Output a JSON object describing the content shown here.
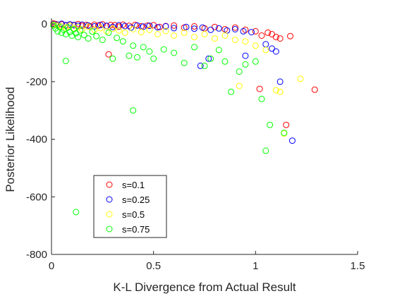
{
  "chart_data": {
    "type": "scatter",
    "xlabel": "K-L Divergence from Actual Result",
    "ylabel": "Posterior Likelihood",
    "xlim": [
      0,
      1.5
    ],
    "ylim": [
      -800,
      20
    ],
    "xticks": [
      0,
      0.5,
      1,
      1.5
    ],
    "xtick_labels": [
      "0",
      "0.5",
      "1",
      "1.5"
    ],
    "yticks": [
      0,
      -200,
      -400,
      -600,
      -800
    ],
    "ytick_labels": [
      "0",
      "-200",
      "-400",
      "-600",
      "-800"
    ],
    "grid": false,
    "legend_position": "lower-left",
    "marker": "open-circle",
    "series": [
      {
        "name": "s=0.1",
        "color": "#ff0000",
        "points": [
          [
            0.01,
            2
          ],
          [
            0.02,
            0
          ],
          [
            0.03,
            -3
          ],
          [
            0.05,
            -1
          ],
          [
            0.07,
            -5
          ],
          [
            0.09,
            -2
          ],
          [
            0.11,
            -4
          ],
          [
            0.13,
            0
          ],
          [
            0.15,
            -6
          ],
          [
            0.17,
            -3
          ],
          [
            0.19,
            -8
          ],
          [
            0.21,
            -2
          ],
          [
            0.23,
            -5
          ],
          [
            0.25,
            -1
          ],
          [
            0.27,
            -7
          ],
          [
            0.29,
            -3
          ],
          [
            0.31,
            -4
          ],
          [
            0.33,
            -9
          ],
          [
            0.35,
            -2
          ],
          [
            0.38,
            -6
          ],
          [
            0.41,
            -3
          ],
          [
            0.44,
            -8
          ],
          [
            0.47,
            -5
          ],
          [
            0.5,
            -4
          ],
          [
            0.53,
            -10
          ],
          [
            0.56,
            -7
          ],
          [
            0.6,
            -5
          ],
          [
            0.65,
            -12
          ],
          [
            0.7,
            -8
          ],
          [
            0.75,
            -15
          ],
          [
            0.8,
            -10
          ],
          [
            0.85,
            -18
          ],
          [
            0.9,
            -12
          ],
          [
            0.95,
            -20
          ],
          [
            1.0,
            -25
          ],
          [
            1.03,
            -40
          ],
          [
            1.06,
            -30
          ],
          [
            1.08,
            -35
          ],
          [
            1.1,
            -45
          ],
          [
            1.12,
            -50
          ],
          [
            1.17,
            -42
          ],
          [
            0.28,
            -105
          ],
          [
            1.02,
            -225
          ],
          [
            1.15,
            -350
          ],
          [
            1.29,
            -228
          ]
        ]
      },
      {
        "name": "s=0.25",
        "color": "#0000ff",
        "points": [
          [
            0.01,
            0
          ],
          [
            0.03,
            -2
          ],
          [
            0.05,
            1
          ],
          [
            0.07,
            -4
          ],
          [
            0.09,
            -1
          ],
          [
            0.11,
            -3
          ],
          [
            0.13,
            -6
          ],
          [
            0.15,
            -2
          ],
          [
            0.18,
            -5
          ],
          [
            0.21,
            -8
          ],
          [
            0.24,
            -3
          ],
          [
            0.27,
            -6
          ],
          [
            0.3,
            -10
          ],
          [
            0.33,
            -4
          ],
          [
            0.36,
            -7
          ],
          [
            0.39,
            -12
          ],
          [
            0.42,
            -5
          ],
          [
            0.45,
            -9
          ],
          [
            0.48,
            -6
          ],
          [
            0.52,
            -11
          ],
          [
            0.56,
            -8
          ],
          [
            0.6,
            -14
          ],
          [
            0.66,
            -10
          ],
          [
            0.7,
            -16
          ],
          [
            0.74,
            -12
          ],
          [
            0.78,
            -20
          ],
          [
            0.82,
            -15
          ],
          [
            0.86,
            -22
          ],
          [
            0.9,
            -18
          ],
          [
            0.94,
            -25
          ],
          [
            0.98,
            -28
          ],
          [
            1.05,
            -70
          ],
          [
            1.08,
            -85
          ],
          [
            1.1,
            -95
          ],
          [
            0.73,
            -145
          ],
          [
            0.77,
            -120
          ],
          [
            0.95,
            -110
          ],
          [
            1.12,
            -200
          ],
          [
            1.18,
            -405
          ]
        ]
      },
      {
        "name": "s=0.5",
        "color": "#ffff00",
        "points": [
          [
            0.01,
            -2
          ],
          [
            0.03,
            -5
          ],
          [
            0.05,
            -8
          ],
          [
            0.07,
            -12
          ],
          [
            0.09,
            -6
          ],
          [
            0.11,
            -15
          ],
          [
            0.13,
            -10
          ],
          [
            0.15,
            -18
          ],
          [
            0.18,
            -9
          ],
          [
            0.21,
            -20
          ],
          [
            0.24,
            -14
          ],
          [
            0.27,
            -25
          ],
          [
            0.3,
            -16
          ],
          [
            0.33,
            -22
          ],
          [
            0.36,
            -30
          ],
          [
            0.4,
            -18
          ],
          [
            0.44,
            -28
          ],
          [
            0.48,
            -20
          ],
          [
            0.52,
            -35
          ],
          [
            0.56,
            -24
          ],
          [
            0.6,
            -40
          ],
          [
            0.65,
            -30
          ],
          [
            0.7,
            -45
          ],
          [
            0.75,
            -35
          ],
          [
            0.8,
            -50
          ],
          [
            0.85,
            -40
          ],
          [
            0.9,
            -55
          ],
          [
            0.95,
            -60
          ],
          [
            1.0,
            -75
          ],
          [
            1.05,
            -90
          ],
          [
            1.1,
            -230
          ],
          [
            1.12,
            -235
          ],
          [
            1.22,
            -190
          ],
          [
            1.14,
            -380
          ],
          [
            0.92,
            -215
          ]
        ]
      },
      {
        "name": "s=0.75",
        "color": "#00ff00",
        "points": [
          [
            0.01,
            -5
          ],
          [
            0.02,
            -15
          ],
          [
            0.03,
            -25
          ],
          [
            0.04,
            -10
          ],
          [
            0.05,
            -30
          ],
          [
            0.06,
            -20
          ],
          [
            0.07,
            -35
          ],
          [
            0.08,
            -12
          ],
          [
            0.09,
            -28
          ],
          [
            0.1,
            -40
          ],
          [
            0.11,
            -18
          ],
          [
            0.12,
            -32
          ],
          [
            0.13,
            -45
          ],
          [
            0.14,
            -22
          ],
          [
            0.16,
            -38
          ],
          [
            0.18,
            -50
          ],
          [
            0.2,
            -26
          ],
          [
            0.22,
            -42
          ],
          [
            0.25,
            -55
          ],
          [
            0.28,
            -30
          ],
          [
            0.3,
            -120
          ],
          [
            0.32,
            -48
          ],
          [
            0.35,
            -60
          ],
          [
            0.38,
            -110
          ],
          [
            0.4,
            -75
          ],
          [
            0.42,
            -115
          ],
          [
            0.45,
            -80
          ],
          [
            0.48,
            -95
          ],
          [
            0.5,
            -120
          ],
          [
            0.55,
            -88
          ],
          [
            0.6,
            -100
          ],
          [
            0.65,
            -135
          ],
          [
            0.7,
            -80
          ],
          [
            0.75,
            -145
          ],
          [
            0.78,
            -120
          ],
          [
            0.82,
            -90
          ],
          [
            0.85,
            -130
          ],
          [
            0.88,
            -235
          ],
          [
            0.92,
            -165
          ],
          [
            0.95,
            -140
          ],
          [
            1.0,
            -130
          ],
          [
            1.03,
            -260
          ],
          [
            1.07,
            -350
          ],
          [
            1.05,
            -440
          ],
          [
            0.07,
            -128
          ],
          [
            0.4,
            -300
          ],
          [
            1.14,
            -378
          ],
          [
            0.12,
            -653
          ]
        ]
      }
    ]
  }
}
